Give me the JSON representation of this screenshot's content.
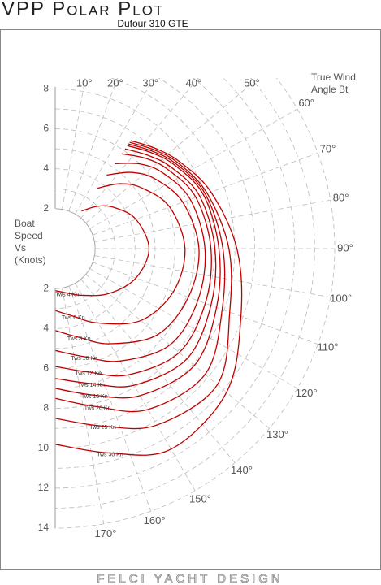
{
  "chart_data": {
    "type": "polar",
    "title": "VPP Polar Plot",
    "subtitle": "Dufour 310 GTE",
    "y_label": [
      "Boat",
      "Speed",
      "Vs",
      "(Knots)"
    ],
    "x_label": [
      "True Wind",
      "Angle Bt"
    ],
    "footer": "FELCI YACHT DESIGN",
    "x": [
      35,
      45,
      55,
      70,
      90,
      110,
      130,
      150,
      165,
      180
    ],
    "xlim": [
      0,
      180
    ],
    "xticks": [
      {
        "value": 10,
        "label": "10°"
      },
      {
        "value": 20,
        "label": "20°"
      },
      {
        "value": 30,
        "label": "30°"
      },
      {
        "value": 40,
        "label": "40°"
      },
      {
        "value": 50,
        "label": "50°"
      },
      {
        "value": 60,
        "label": "60°"
      },
      {
        "value": 70,
        "label": "70°"
      },
      {
        "value": 80,
        "label": "80°"
      },
      {
        "value": 90,
        "label": "90°"
      },
      {
        "value": 100,
        "label": "100°"
      },
      {
        "value": 110,
        "label": "110°"
      },
      {
        "value": 120,
        "label": "120°"
      },
      {
        "value": 130,
        "label": "130°"
      },
      {
        "value": 140,
        "label": "140°"
      },
      {
        "value": 150,
        "label": "150°"
      },
      {
        "value": 160,
        "label": "160°"
      },
      {
        "value": 170,
        "label": "170°"
      }
    ],
    "ylim": [
      0,
      14
    ],
    "yticks": [
      2,
      4,
      6,
      8,
      10,
      12,
      14
    ],
    "grid": true,
    "series": [
      {
        "name": "Tws 4 Kn",
        "color": "#c00000",
        "values": [
          2.3,
          3.0,
          3.6,
          4.3,
          4.7,
          4.3,
          3.5,
          2.7,
          2.3,
          2.1
        ]
      },
      {
        "name": "Tws 6 Kn",
        "color": "#c00000",
        "values": [
          3.7,
          4.6,
          5.3,
          6.1,
          6.5,
          6.3,
          5.6,
          4.3,
          3.5,
          3.1
        ]
      },
      {
        "name": "Tws 8 Kn",
        "color": "#c00000",
        "values": [
          4.5,
          5.4,
          6.1,
          6.8,
          7.2,
          7.1,
          6.7,
          5.5,
          4.6,
          4.1
        ]
      },
      {
        "name": "Tws 10 Kn",
        "color": "#c00000",
        "values": [
          5.2,
          6.0,
          6.6,
          7.2,
          7.5,
          7.6,
          7.5,
          6.5,
          5.6,
          5.1
        ]
      },
      {
        "name": "Tws 12 Kn",
        "color": "#c00000",
        "values": [
          5.8,
          6.4,
          6.9,
          7.5,
          7.8,
          8.0,
          8.1,
          7.3,
          6.4,
          5.9
        ]
      },
      {
        "name": "Tws 14 Kn",
        "color": "#c00000",
        "values": [
          6.1,
          6.6,
          7.1,
          7.7,
          8.0,
          8.3,
          8.6,
          7.9,
          7.0,
          6.5
        ]
      },
      {
        "name": "Tws 16 Kn",
        "color": "#c00000",
        "values": [
          6.3,
          6.8,
          7.3,
          7.9,
          8.2,
          8.6,
          9.1,
          8.5,
          7.6,
          7.0
        ]
      },
      {
        "name": "Tws 20 Kn",
        "color": "#c00000",
        "values": [
          6.4,
          6.9,
          7.4,
          8.0,
          8.4,
          8.9,
          9.8,
          9.3,
          8.2,
          7.5
        ]
      },
      {
        "name": "Tws 25 Kn",
        "color": "#c00000",
        "values": [
          6.5,
          7.0,
          7.5,
          8.1,
          8.7,
          9.3,
          10.6,
          10.2,
          9.2,
          8.5
        ]
      },
      {
        "name": "Tws 30 Kn",
        "color": "#c00000",
        "values": [
          6.6,
          7.1,
          7.6,
          8.3,
          9.1,
          9.9,
          11.2,
          11.6,
          10.6,
          9.8
        ]
      }
    ]
  }
}
